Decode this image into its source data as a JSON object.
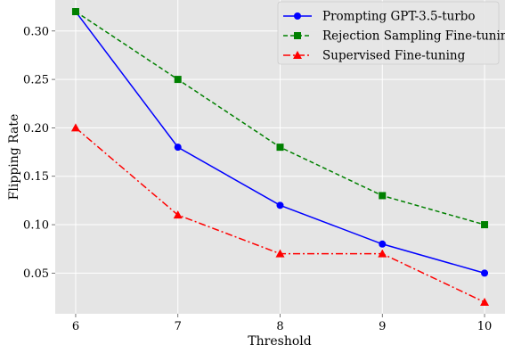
{
  "chart_data": {
    "type": "line",
    "xlabel": "Threshold",
    "ylabel": "Flipping Rate",
    "x": [
      6,
      7,
      8,
      9,
      10
    ],
    "x_ticks": [
      "6",
      "7",
      "8",
      "9",
      "10"
    ],
    "y_ticks": [
      "0.05",
      "0.10",
      "0.15",
      "0.20",
      "0.25",
      "0.30"
    ],
    "xlim": [
      5.8,
      10.2
    ],
    "ylim": [
      0.008,
      0.332
    ],
    "grid": true,
    "legend_position": "top-right",
    "background": "#e5e5e5",
    "series": [
      {
        "name": "Prompting GPT-3.5-turbo",
        "values": [
          0.32,
          0.18,
          0.12,
          0.08,
          0.05
        ],
        "color": "#0000ff",
        "marker": "circle",
        "line_style": "solid"
      },
      {
        "name": "Rejection Sampling Fine-tuning",
        "values": [
          0.32,
          0.25,
          0.18,
          0.13,
          0.1
        ],
        "color": "#008000",
        "marker": "square",
        "line_style": "dashed"
      },
      {
        "name": "Supervised Fine-tuning",
        "values": [
          0.2,
          0.11,
          0.07,
          0.07,
          0.02
        ],
        "color": "#ff0000",
        "marker": "triangle",
        "line_style": "dashdot"
      }
    ]
  }
}
